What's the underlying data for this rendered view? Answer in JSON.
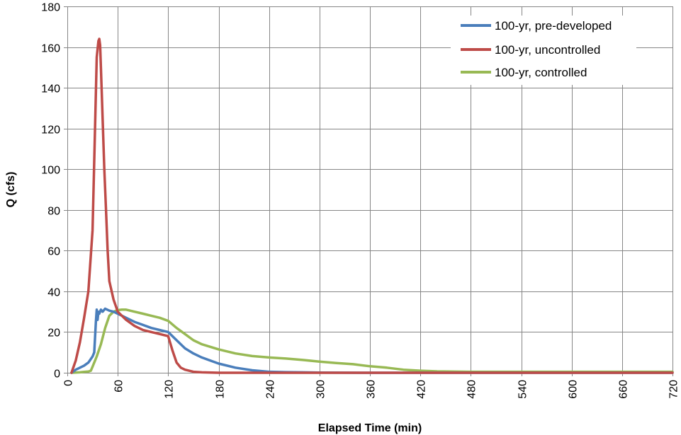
{
  "chart_data": {
    "type": "line",
    "title": "",
    "xlabel": "Elapsed Time (min)",
    "ylabel": "Q (cfs)",
    "xlim": [
      0,
      720
    ],
    "ylim": [
      0,
      180
    ],
    "x_ticks": [
      0,
      60,
      120,
      180,
      240,
      300,
      360,
      420,
      480,
      540,
      600,
      660,
      720
    ],
    "y_ticks": [
      0,
      20,
      40,
      60,
      80,
      100,
      120,
      140,
      160,
      180
    ],
    "grid": true,
    "legend_position": "top-right",
    "series": [
      {
        "name": "100-yr, pre-developed",
        "color": "#4a7ebb",
        "x": [
          5,
          10,
          15,
          20,
          25,
          30,
          32,
          34,
          35,
          36,
          37,
          38,
          40,
          42,
          45,
          50,
          55,
          60,
          70,
          80,
          90,
          100,
          110,
          120,
          130,
          140,
          150,
          160,
          180,
          200,
          220,
          240,
          260,
          280,
          300,
          360,
          420,
          480,
          540,
          600,
          660,
          720
        ],
        "y": [
          0,
          1.5,
          2.5,
          3.5,
          5,
          8,
          10,
          25,
          31,
          26,
          30,
          29,
          31,
          30,
          31.5,
          30.5,
          30,
          29,
          27,
          25,
          23.5,
          22,
          21,
          20,
          16,
          12,
          9.5,
          7.5,
          4.5,
          2.5,
          1.2,
          0.5,
          0.3,
          0.2,
          0.1,
          0,
          0,
          0,
          0,
          0,
          0,
          0
        ]
      },
      {
        "name": "100-yr, uncontrolled",
        "color": "#be4b48",
        "x": [
          5,
          10,
          15,
          20,
          25,
          30,
          33,
          35,
          37,
          38,
          39,
          40,
          42,
          44,
          46,
          48,
          50,
          55,
          60,
          70,
          80,
          90,
          100,
          110,
          120,
          125,
          130,
          135,
          140,
          150,
          160,
          180,
          240,
          300,
          360,
          420,
          480,
          540,
          600,
          660,
          720
        ],
        "y": [
          0,
          6,
          15,
          27,
          40,
          70,
          120,
          155,
          163,
          164,
          161,
          150,
          125,
          100,
          80,
          60,
          45,
          36,
          30,
          26,
          23,
          21,
          20,
          19,
          18,
          11,
          5,
          2.5,
          1.5,
          0.5,
          0.2,
          0,
          0,
          0,
          0,
          0,
          0,
          0,
          0,
          0,
          0
        ]
      },
      {
        "name": "100-yr, controlled",
        "color": "#98b954",
        "x": [
          5,
          15,
          20,
          25,
          28,
          30,
          35,
          40,
          45,
          50,
          55,
          60,
          65,
          70,
          80,
          90,
          100,
          110,
          120,
          130,
          140,
          150,
          160,
          180,
          200,
          220,
          240,
          260,
          280,
          300,
          320,
          340,
          360,
          380,
          400,
          420,
          440,
          480,
          540,
          600,
          660,
          720
        ],
        "y": [
          0,
          0.2,
          0.4,
          0.6,
          1,
          3,
          8,
          14,
          22,
          28,
          30,
          30.8,
          31,
          31,
          30,
          29,
          28,
          27,
          25.5,
          22,
          19,
          16,
          14,
          11.5,
          9.5,
          8.2,
          7.5,
          7,
          6.3,
          5.5,
          4.8,
          4.2,
          3.2,
          2.5,
          1.5,
          1,
          0.7,
          0.5,
          0.5,
          0.5,
          0.5,
          0.5
        ]
      }
    ]
  }
}
